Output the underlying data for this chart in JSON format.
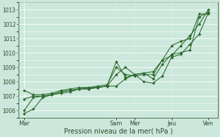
{
  "bg_color": "#cce8dc",
  "grid_color": "#ffffff",
  "line_color": "#2d6a2d",
  "xlabel": "Pression niveau de la mer( hPa )",
  "ylim": [
    1005.5,
    1013.5
  ],
  "yticks": [
    1006,
    1007,
    1008,
    1009,
    1010,
    1011,
    1012,
    1013
  ],
  "xtick_labels": [
    "Mar",
    "Sam",
    "Mer",
    "Jeu",
    "Ven"
  ],
  "xtick_positions": [
    0,
    5,
    6,
    8,
    10
  ],
  "xlim": [
    -0.3,
    10.5
  ],
  "vlines": [
    5,
    6,
    8,
    10
  ],
  "series": [
    {
      "x": [
        0,
        0.5,
        1,
        1.5,
        2,
        2.5,
        3,
        3.5,
        4,
        4.5,
        5,
        5.5,
        6,
        6.5,
        7,
        7.5,
        8,
        8.5,
        9,
        9.5,
        10
      ],
      "y": [
        1005.8,
        1006.1,
        1006.9,
        1007.1,
        1007.2,
        1007.3,
        1007.5,
        1007.6,
        1007.6,
        1007.7,
        1007.7,
        1008.2,
        1008.5,
        1008.6,
        1008.7,
        1009.5,
        1009.8,
        1010.5,
        1011.2,
        1012.0,
        1013.0
      ]
    },
    {
      "x": [
        0,
        0.5,
        1,
        1.5,
        2,
        2.5,
        3,
        3.5,
        4,
        4.5,
        5,
        5.5,
        6,
        6.5,
        7,
        7.5,
        8,
        8.5,
        9,
        9.5,
        10
      ],
      "y": [
        1006.0,
        1006.9,
        1007.0,
        1007.1,
        1007.3,
        1007.4,
        1007.5,
        1007.5,
        1007.6,
        1007.7,
        1009.4,
        1008.3,
        1008.5,
        1008.6,
        1008.2,
        1009.2,
        1009.9,
        1010.0,
        1010.2,
        1012.5,
        1012.8
      ]
    },
    {
      "x": [
        0,
        0.5,
        1,
        1.5,
        2,
        2.5,
        3,
        3.5,
        4,
        4.5,
        5,
        5.5,
        6,
        6.5,
        7,
        7.5,
        8,
        8.5,
        9,
        9.5,
        10
      ],
      "y": [
        1006.8,
        1007.0,
        1007.0,
        1007.1,
        1007.3,
        1007.4,
        1007.5,
        1007.5,
        1007.6,
        1007.7,
        1008.5,
        1009.0,
        1008.5,
        1008.0,
        1007.9,
        1008.4,
        1009.7,
        1009.9,
        1010.6,
        1011.3,
        1012.8
      ]
    },
    {
      "x": [
        0,
        0.5,
        1,
        1.5,
        2,
        2.5,
        3,
        3.5,
        4,
        4.5,
        5,
        5.5,
        6,
        6.5,
        7,
        7.5,
        8,
        8.5,
        9,
        9.5,
        10
      ],
      "y": [
        1007.4,
        1007.1,
        1007.1,
        1007.2,
        1007.4,
        1007.5,
        1007.6,
        1007.6,
        1007.7,
        1007.8,
        1009.0,
        1008.5,
        1008.4,
        1008.5,
        1008.5,
        1009.5,
        1010.5,
        1010.8,
        1011.0,
        1012.7,
        1012.7
      ]
    }
  ]
}
